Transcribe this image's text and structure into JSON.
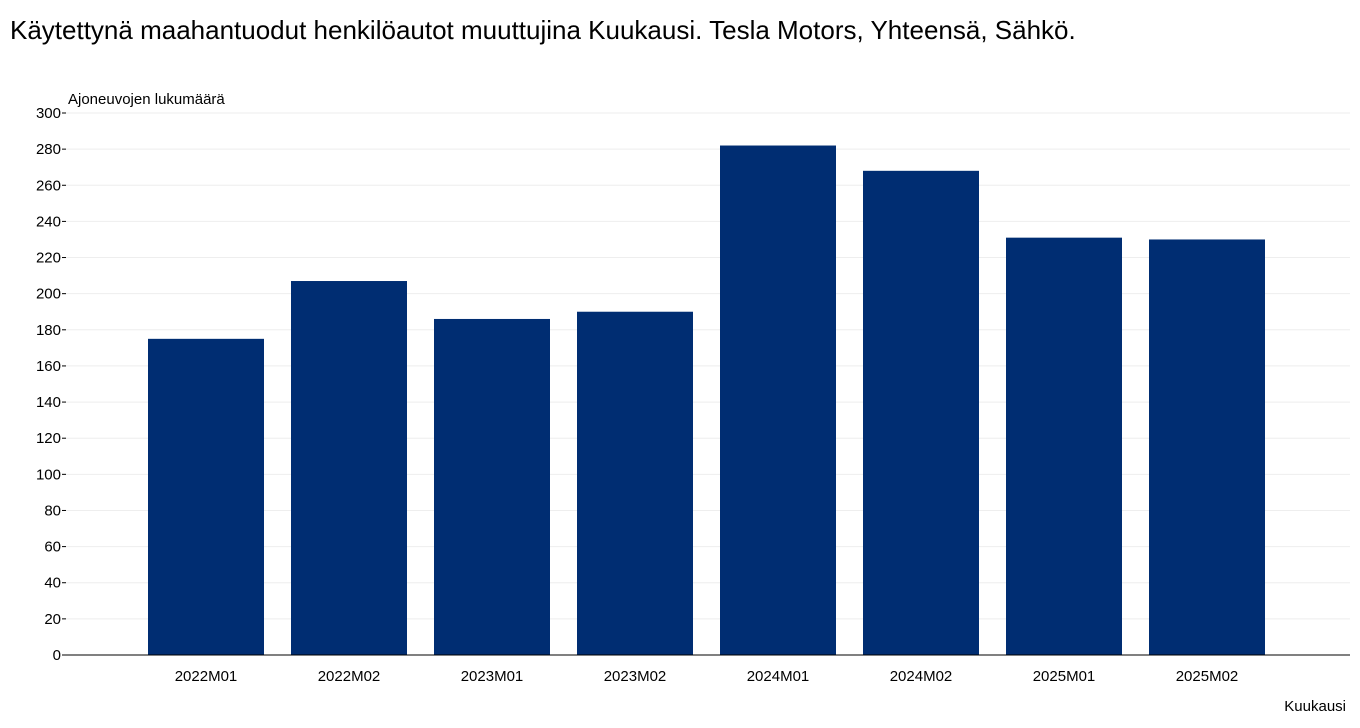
{
  "chart_data": {
    "type": "bar",
    "title": "Käytettynä maahantuodut henkilöautot muuttujina Kuukausi. Tesla Motors, Yhteensä, Sähkö.",
    "xlabel": "Kuukausi",
    "ylabel": "Ajoneuvojen lukumäärä",
    "categories": [
      "2022M01",
      "2022M02",
      "2023M01",
      "2023M02",
      "2024M01",
      "2024M02",
      "2025M01",
      "2025M02"
    ],
    "values": [
      175,
      207,
      186,
      190,
      282,
      268,
      231,
      230
    ],
    "ylim": [
      0,
      300
    ],
    "yticks": [
      0,
      20,
      40,
      60,
      80,
      100,
      120,
      140,
      160,
      180,
      200,
      220,
      240,
      260,
      280,
      300
    ],
    "grid": true,
    "legend": "none",
    "bar_color": "#002d72",
    "grid_color": "#eeeeee",
    "axis_color": "#000000"
  }
}
